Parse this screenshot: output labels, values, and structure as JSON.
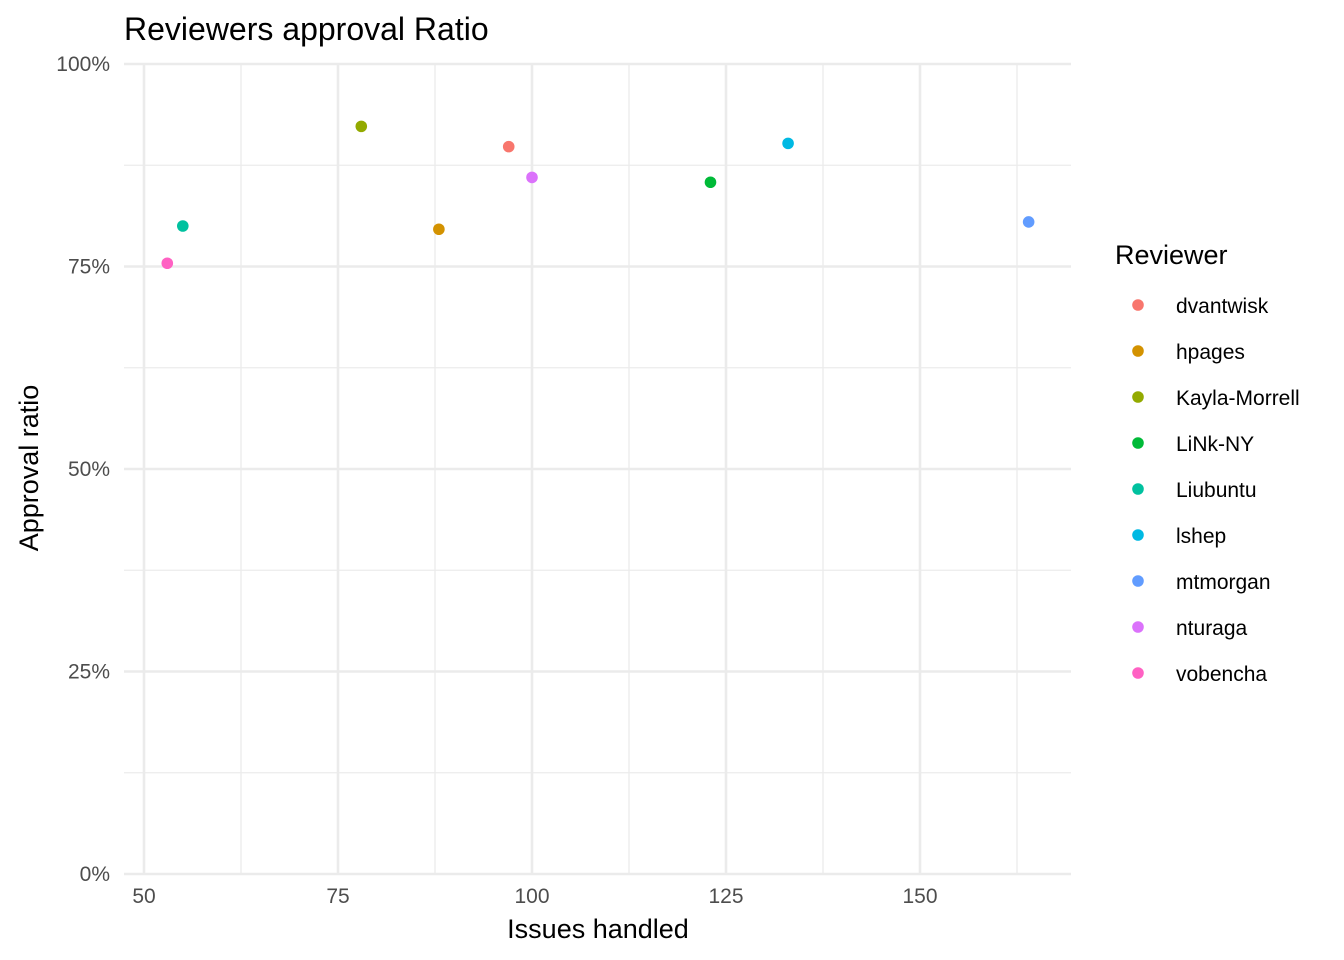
{
  "chart_data": {
    "type": "scatter",
    "title": "Reviewers approval Ratio",
    "xlabel": "Issues handled",
    "ylabel": "Approval ratio",
    "xlim": [
      48,
      170
    ],
    "ylim": [
      0,
      1
    ],
    "x_ticks": [
      50,
      75,
      100,
      125,
      150
    ],
    "x_tick_labels": [
      "50",
      "75",
      "100",
      "125",
      "150"
    ],
    "y_ticks": [
      0,
      0.25,
      0.5,
      0.75,
      1
    ],
    "y_tick_labels": [
      "0%",
      "25%",
      "50%",
      "75%",
      "100%"
    ],
    "grid": true,
    "legend": {
      "title": "Reviewer",
      "position": "right"
    },
    "series": [
      {
        "name": "dvantwisk",
        "color": "#F8766D",
        "x": [
          97
        ],
        "y": [
          0.898
        ]
      },
      {
        "name": "hpages",
        "color": "#D39200",
        "x": [
          88
        ],
        "y": [
          0.796
        ]
      },
      {
        "name": "Kayla-Morrell",
        "color": "#93AA00",
        "x": [
          78
        ],
        "y": [
          0.923
        ]
      },
      {
        "name": "LiNk-NY",
        "color": "#00BA38",
        "x": [
          123
        ],
        "y": [
          0.854
        ]
      },
      {
        "name": "Liubuntu",
        "color": "#00C19F",
        "x": [
          55
        ],
        "y": [
          0.8
        ]
      },
      {
        "name": "lshep",
        "color": "#00B9E3",
        "x": [
          133
        ],
        "y": [
          0.902
        ]
      },
      {
        "name": "mtmorgan",
        "color": "#619CFF",
        "x": [
          164
        ],
        "y": [
          0.805
        ]
      },
      {
        "name": "nturaga",
        "color": "#DB72FB",
        "x": [
          100
        ],
        "y": [
          0.86
        ]
      },
      {
        "name": "vobencha",
        "color": "#FF61C3",
        "x": [
          53
        ],
        "y": [
          0.754
        ]
      }
    ]
  }
}
